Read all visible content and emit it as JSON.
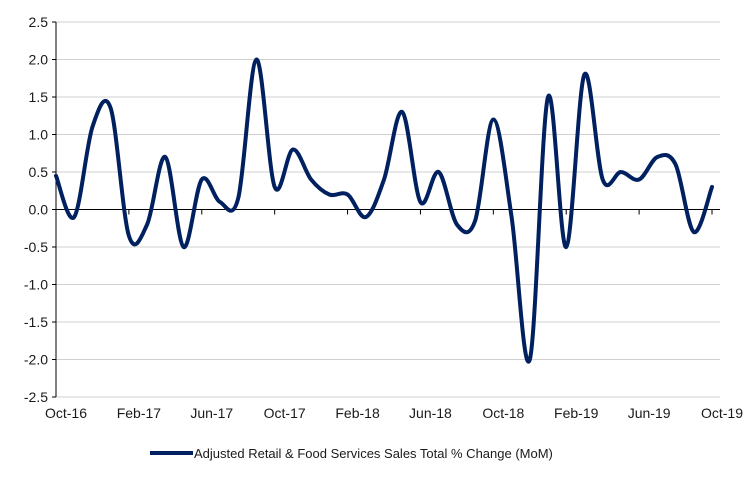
{
  "chart_data": {
    "type": "line",
    "title": "",
    "xlabel": "",
    "ylabel": "",
    "smooth": true,
    "line_color": "#002060",
    "grid": true,
    "legend_position": "bottom",
    "ylim": [
      -2.5,
      2.5
    ],
    "y_ticks": [
      2.5,
      2.0,
      1.5,
      1.0,
      0.5,
      0.0,
      -0.5,
      -1.0,
      -1.5,
      -2.0,
      -2.5
    ],
    "y_tick_labels": [
      "2.5",
      "2.0",
      "1.5",
      "1.0",
      "0.5",
      "0.0",
      "-0.5",
      "-1.0",
      "-1.5",
      "-2.0",
      "-2.5"
    ],
    "x_tick_labels": [
      "Oct-16",
      "Feb-17",
      "Jun-17",
      "Oct-17",
      "Feb-18",
      "Jun-18",
      "Oct-18",
      "Feb-19",
      "Jun-19",
      "Oct-19"
    ],
    "x_tick_interval_months": 4,
    "x": [
      "Oct-16",
      "Nov-16",
      "Dec-16",
      "Jan-17",
      "Feb-17",
      "Mar-17",
      "Apr-17",
      "May-17",
      "Jun-17",
      "Jul-17",
      "Aug-17",
      "Sep-17",
      "Oct-17",
      "Nov-17",
      "Dec-17",
      "Jan-18",
      "Feb-18",
      "Mar-18",
      "Apr-18",
      "May-18",
      "Jun-18",
      "Jul-18",
      "Aug-18",
      "Sep-18",
      "Oct-18",
      "Nov-18",
      "Dec-18",
      "Jan-19",
      "Feb-19",
      "Mar-19",
      "Apr-19",
      "May-19",
      "Jun-19",
      "Jul-19",
      "Aug-19",
      "Sep-19",
      "Oct-19"
    ],
    "series": [
      {
        "name": "Adjusted Retail & Food Services Sales Total % Change (MoM)",
        "values": [
          0.45,
          -0.1,
          1.1,
          1.35,
          -0.35,
          -0.2,
          0.7,
          -0.5,
          0.4,
          0.1,
          0.15,
          2.0,
          0.3,
          0.8,
          0.4,
          0.2,
          0.2,
          -0.1,
          0.4,
          1.3,
          0.1,
          0.5,
          -0.2,
          -0.15,
          1.2,
          -0.1,
          -2.0,
          1.5,
          -0.5,
          1.8,
          0.4,
          0.5,
          0.4,
          0.7,
          0.6,
          -0.3,
          0.3
        ]
      }
    ]
  }
}
